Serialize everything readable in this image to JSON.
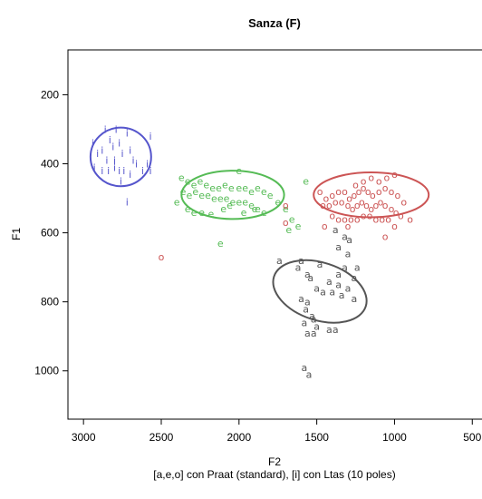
{
  "chart_data": {
    "type": "scatter",
    "title": "Sanza (F)",
    "xlabel": "F2",
    "xlabel_sub": "[a,e,o] con Praat (standard), [i] con Ltas (10 poles)",
    "ylabel": "F1",
    "xlim": [
      3100,
      420
    ],
    "ylim": [
      1140,
      70
    ],
    "x_ticks": [
      3000,
      2500,
      2000,
      1500,
      1000,
      500
    ],
    "x_tick_labels": [
      "3000",
      "2500",
      "2000",
      "1500",
      "1000",
      "500"
    ],
    "y_ticks": [
      200,
      400,
      600,
      800,
      1000
    ],
    "y_tick_labels": [
      "200",
      "400",
      "600",
      "800",
      "1000"
    ],
    "grid": false,
    "legend": "none",
    "series": [
      {
        "label": "i",
        "color": "#5555cc",
        "ellipse": {
          "cx": 2760,
          "cy": 380,
          "rx": 195,
          "ry": 85
        },
        "points": [
          [
            2940,
            340
          ],
          [
            2910,
            370
          ],
          [
            2880,
            360
          ],
          [
            2860,
            300
          ],
          [
            2830,
            330
          ],
          [
            2810,
            350
          ],
          [
            2790,
            300
          ],
          [
            2770,
            340
          ],
          [
            2750,
            370
          ],
          [
            2720,
            310
          ],
          [
            2700,
            360
          ],
          [
            2680,
            390
          ],
          [
            2930,
            410
          ],
          [
            2880,
            420
          ],
          [
            2840,
            420
          ],
          [
            2800,
            410
          ],
          [
            2770,
            420
          ],
          [
            2740,
            420
          ],
          [
            2700,
            430
          ],
          [
            2660,
            400
          ],
          [
            2620,
            420
          ],
          [
            2590,
            400
          ],
          [
            2570,
            420
          ],
          [
            2760,
            450
          ],
          [
            2720,
            510
          ],
          [
            2800,
            390
          ],
          [
            2850,
            390
          ],
          [
            2570,
            320
          ]
        ]
      },
      {
        "label": "e",
        "color": "#55bb55",
        "ellipse": {
          "cx": 2040,
          "cy": 490,
          "rx": 330,
          "ry": 70
        },
        "points": [
          [
            2000,
            420
          ],
          [
            2370,
            440
          ],
          [
            2330,
            450
          ],
          [
            2290,
            460
          ],
          [
            2250,
            450
          ],
          [
            2210,
            460
          ],
          [
            2170,
            470
          ],
          [
            2130,
            470
          ],
          [
            2090,
            460
          ],
          [
            2050,
            470
          ],
          [
            2000,
            470
          ],
          [
            1960,
            470
          ],
          [
            1920,
            480
          ],
          [
            1880,
            470
          ],
          [
            1840,
            480
          ],
          [
            1800,
            490
          ],
          [
            2360,
            480
          ],
          [
            2320,
            490
          ],
          [
            2280,
            480
          ],
          [
            2240,
            490
          ],
          [
            2200,
            490
          ],
          [
            2160,
            500
          ],
          [
            2120,
            500
          ],
          [
            2080,
            500
          ],
          [
            2040,
            510
          ],
          [
            2000,
            510
          ],
          [
            1960,
            510
          ],
          [
            1920,
            520
          ],
          [
            1880,
            530
          ],
          [
            1840,
            540
          ],
          [
            2330,
            530
          ],
          [
            2290,
            540
          ],
          [
            2240,
            540
          ],
          [
            2180,
            545
          ],
          [
            2100,
            530
          ],
          [
            2060,
            520
          ],
          [
            1970,
            540
          ],
          [
            1900,
            530
          ],
          [
            1750,
            510
          ],
          [
            1700,
            530
          ],
          [
            1660,
            560
          ],
          [
            1620,
            580
          ],
          [
            1680,
            590
          ],
          [
            1570,
            450
          ],
          [
            2400,
            510
          ],
          [
            2120,
            630
          ]
        ]
      },
      {
        "label": "o",
        "color": "#cc5555",
        "ellipse": {
          "cx": 1150,
          "cy": 490,
          "rx": 370,
          "ry": 65
        },
        "points": [
          [
            1480,
            480
          ],
          [
            1440,
            500
          ],
          [
            1400,
            490
          ],
          [
            1360,
            480
          ],
          [
            1320,
            480
          ],
          [
            1290,
            500
          ],
          [
            1260,
            490
          ],
          [
            1230,
            480
          ],
          [
            1200,
            470
          ],
          [
            1170,
            480
          ],
          [
            1140,
            490
          ],
          [
            1100,
            480
          ],
          [
            1060,
            470
          ],
          [
            1020,
            480
          ],
          [
            980,
            490
          ],
          [
            940,
            510
          ],
          [
            1460,
            520
          ],
          [
            1420,
            520
          ],
          [
            1380,
            510
          ],
          [
            1340,
            510
          ],
          [
            1300,
            520
          ],
          [
            1270,
            530
          ],
          [
            1240,
            520
          ],
          [
            1210,
            510
          ],
          [
            1180,
            520
          ],
          [
            1150,
            530
          ],
          [
            1120,
            520
          ],
          [
            1090,
            510
          ],
          [
            1060,
            520
          ],
          [
            1020,
            530
          ],
          [
            990,
            540
          ],
          [
            960,
            550
          ],
          [
            1400,
            550
          ],
          [
            1360,
            560
          ],
          [
            1320,
            560
          ],
          [
            1280,
            560
          ],
          [
            1240,
            560
          ],
          [
            1200,
            550
          ],
          [
            1160,
            550
          ],
          [
            1120,
            560
          ],
          [
            1080,
            560
          ],
          [
            1040,
            560
          ],
          [
            1000,
            580
          ],
          [
            1250,
            460
          ],
          [
            1200,
            450
          ],
          [
            1150,
            440
          ],
          [
            1100,
            450
          ],
          [
            1050,
            440
          ],
          [
            1000,
            430
          ],
          [
            1060,
            610
          ],
          [
            1700,
            520
          ],
          [
            1700,
            570
          ],
          [
            2500,
            670
          ],
          [
            1450,
            580
          ],
          [
            1300,
            580
          ],
          [
            900,
            560
          ]
        ]
      },
      {
        "label": "a",
        "color": "#555555",
        "ellipse": {
          "cx": 1480,
          "cy": 770,
          "rx": 185,
          "ry": 140,
          "angle": -72
        },
        "points": [
          [
            1380,
            590
          ],
          [
            1320,
            610
          ],
          [
            1290,
            620
          ],
          [
            1360,
            640
          ],
          [
            1300,
            660
          ],
          [
            1600,
            680
          ],
          [
            1480,
            690
          ],
          [
            1620,
            700
          ],
          [
            1320,
            700
          ],
          [
            1240,
            700
          ],
          [
            1560,
            720
          ],
          [
            1360,
            720
          ],
          [
            1260,
            730
          ],
          [
            1540,
            730
          ],
          [
            1420,
            740
          ],
          [
            1360,
            750
          ],
          [
            1300,
            760
          ],
          [
            1500,
            760
          ],
          [
            1460,
            770
          ],
          [
            1400,
            770
          ],
          [
            1340,
            780
          ],
          [
            1260,
            790
          ],
          [
            1600,
            790
          ],
          [
            1560,
            800
          ],
          [
            1570,
            820
          ],
          [
            1530,
            840
          ],
          [
            1520,
            850
          ],
          [
            1580,
            860
          ],
          [
            1500,
            870
          ],
          [
            1420,
            880
          ],
          [
            1380,
            880
          ],
          [
            1560,
            890
          ],
          [
            1520,
            890
          ],
          [
            1740,
            680
          ],
          [
            1580,
            990
          ],
          [
            1550,
            1010
          ]
        ]
      }
    ]
  }
}
